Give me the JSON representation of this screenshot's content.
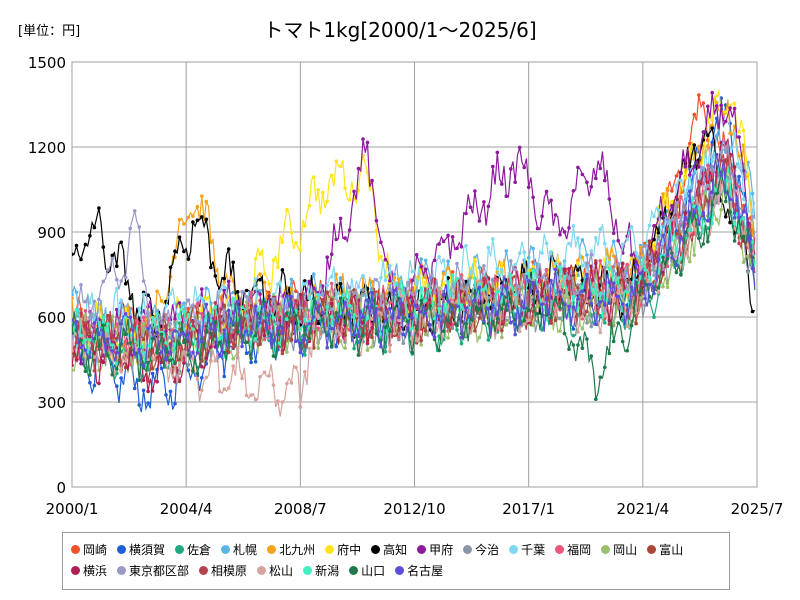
{
  "unit_label": "[単位：円]",
  "chart_data": {
    "type": "line",
    "title": "トマト1kg[2000/1～2025/6]",
    "xlabel": "",
    "ylabel": "",
    "xlim": [
      "2000/1",
      "2025/7"
    ],
    "ylim": [
      0,
      1500
    ],
    "yticks": [
      0,
      300,
      600,
      900,
      1200,
      1500
    ],
    "xticks": [
      "2000/1",
      "2004/4",
      "2008/7",
      "2012/10",
      "2017/1",
      "2021/4",
      "2025/7"
    ],
    "grid": true,
    "legend_position": "bottom",
    "series": [
      {
        "name": "岡崎",
        "color": "#f0502a",
        "points": [
          [
            "2000/1",
            560
          ],
          [
            "2003/1",
            520
          ],
          [
            "2006/1",
            600
          ],
          [
            "2009/1",
            640
          ],
          [
            "2012/1",
            610
          ],
          [
            "2015/1",
            680
          ],
          [
            "2018/1",
            700
          ],
          [
            "2021/1",
            700
          ],
          [
            "2023/7",
            1340
          ],
          [
            "2025/6",
            830
          ]
        ]
      },
      {
        "name": "横須賀",
        "color": "#1c5fd6",
        "points": [
          [
            "2000/1",
            480
          ],
          [
            "2003/1",
            330
          ],
          [
            "2006/1",
            520
          ],
          [
            "2009/1",
            560
          ],
          [
            "2012/1",
            600
          ],
          [
            "2015/1",
            640
          ],
          [
            "2018/1",
            650
          ],
          [
            "2021/1",
            660
          ],
          [
            "2024/6",
            1310
          ],
          [
            "2025/6",
            760
          ]
        ]
      },
      {
        "name": "佐倉",
        "color": "#1ea882",
        "points": [
          [
            "2000/1",
            500
          ],
          [
            "2003/1",
            470
          ],
          [
            "2006/1",
            540
          ],
          [
            "2009/1",
            580
          ],
          [
            "2012/1",
            570
          ],
          [
            "2015/1",
            600
          ],
          [
            "2018/1",
            630
          ],
          [
            "2021/1",
            620
          ],
          [
            "2024/6",
            1080
          ],
          [
            "2025/6",
            720
          ]
        ]
      },
      {
        "name": "札幌",
        "color": "#5ab4e6",
        "points": [
          [
            "2000/1",
            600
          ],
          [
            "2003/1",
            560
          ],
          [
            "2006/1",
            620
          ],
          [
            "2009/1",
            650
          ],
          [
            "2012/1",
            690
          ],
          [
            "2015/1",
            720
          ],
          [
            "2018/1",
            760
          ],
          [
            "2021/1",
            780
          ],
          [
            "2024/6",
            1200
          ],
          [
            "2025/6",
            1010
          ]
        ]
      },
      {
        "name": "北九州",
        "color": "#f5a31a",
        "points": [
          [
            "2000/1",
            570
          ],
          [
            "2003/1",
            560
          ],
          [
            "2004/7",
            1050
          ],
          [
            "2006/1",
            630
          ],
          [
            "2009/1",
            660
          ],
          [
            "2012/1",
            680
          ],
          [
            "2015/1",
            700
          ],
          [
            "2018/1",
            740
          ],
          [
            "2021/1",
            760
          ],
          [
            "2024/6",
            1380
          ],
          [
            "2025/6",
            900
          ]
        ]
      },
      {
        "name": "府中",
        "color": "#ffe51a",
        "points": [
          [
            "2000/1",
            560
          ],
          [
            "2003/1",
            540
          ],
          [
            "2006/1",
            610
          ],
          [
            "2009/7",
            1070
          ],
          [
            "2011/1",
            1100
          ],
          [
            "2012/1",
            650
          ],
          [
            "2015/1",
            700
          ],
          [
            "2018/1",
            730
          ],
          [
            "2021/1",
            760
          ],
          [
            "2024/7",
            1400
          ],
          [
            "2025/6",
            980
          ]
        ]
      },
      {
        "name": "高知",
        "color": "#000000",
        "points": [
          [
            "2000/1",
            820
          ],
          [
            "2001/1",
            900
          ],
          [
            "2003/1",
            560
          ],
          [
            "2004/7",
            950
          ],
          [
            "2006/1",
            700
          ],
          [
            "2009/1",
            650
          ],
          [
            "2012/1",
            600
          ],
          [
            "2015/1",
            680
          ],
          [
            "2018/1",
            720
          ],
          [
            "2021/1",
            700
          ],
          [
            "2023/7",
            1250
          ],
          [
            "2025/6",
            700
          ]
        ]
      },
      {
        "name": "甲府",
        "color": "#8e1a9c",
        "points": [
          [
            "2000/1",
            540
          ],
          [
            "2003/1",
            560
          ],
          [
            "2006/1",
            620
          ],
          [
            "2009/1",
            650
          ],
          [
            "2011/1",
            1160
          ],
          [
            "2012/1",
            620
          ],
          [
            "2016/7",
            1150
          ],
          [
            "2018/1",
            900
          ],
          [
            "2019/7",
            1140
          ],
          [
            "2021/1",
            760
          ],
          [
            "2024/6",
            1390
          ],
          [
            "2025/6",
            800
          ]
        ]
      },
      {
        "name": "今治",
        "color": "#8796a8",
        "points": [
          [
            "2000/1",
            520
          ],
          [
            "2003/1",
            500
          ],
          [
            "2006/1",
            560
          ],
          [
            "2009/1",
            590
          ],
          [
            "2012/1",
            600
          ],
          [
            "2015/1",
            640
          ],
          [
            "2018/1",
            660
          ],
          [
            "2021/1",
            680
          ],
          [
            "2024/6",
            1100
          ],
          [
            "2025/6",
            760
          ]
        ]
      },
      {
        "name": "千葉",
        "color": "#7fd8f0",
        "points": [
          [
            "2000/1",
            580
          ],
          [
            "2003/1",
            590
          ],
          [
            "2006/1",
            640
          ],
          [
            "2009/1",
            680
          ],
          [
            "2012/1",
            700
          ],
          [
            "2015/1",
            760
          ],
          [
            "2018/1",
            800
          ],
          [
            "2021/1",
            840
          ],
          [
            "2024/6",
            1180
          ],
          [
            "2025/6",
            1030
          ]
        ]
      },
      {
        "name": "福岡",
        "color": "#e8577a",
        "points": [
          [
            "2000/1",
            540
          ],
          [
            "2003/1",
            520
          ],
          [
            "2006/1",
            580
          ],
          [
            "2009/1",
            610
          ],
          [
            "2012/1",
            620
          ],
          [
            "2015/1",
            660
          ],
          [
            "2018/1",
            680
          ],
          [
            "2021/1",
            700
          ],
          [
            "2024/6",
            1150
          ],
          [
            "2025/6",
            800
          ]
        ]
      },
      {
        "name": "岡山",
        "color": "#9bbf6a",
        "points": [
          [
            "2000/1",
            510
          ],
          [
            "2003/1",
            480
          ],
          [
            "2006/1",
            550
          ],
          [
            "2009/1",
            580
          ],
          [
            "2012/1",
            590
          ],
          [
            "2015/1",
            620
          ],
          [
            "2018/1",
            640
          ],
          [
            "2021/1",
            650
          ],
          [
            "2024/6",
            1050
          ],
          [
            "2025/6",
            760
          ]
        ]
      },
      {
        "name": "富山",
        "color": "#a8483a",
        "points": [
          [
            "2000/1",
            530
          ],
          [
            "2003/1",
            510
          ],
          [
            "2006/1",
            570
          ],
          [
            "2009/1",
            600
          ],
          [
            "2012/1",
            610
          ],
          [
            "2015/1",
            650
          ],
          [
            "2018/1",
            680
          ],
          [
            "2021/1",
            690
          ],
          [
            "2024/6",
            1120
          ],
          [
            "2025/6",
            770
          ]
        ]
      },
      {
        "name": "横浜",
        "color": "#b01e56",
        "points": [
          [
            "2000/1",
            500
          ],
          [
            "2003/1",
            420
          ],
          [
            "2006/1",
            560
          ],
          [
            "2009/1",
            600
          ],
          [
            "2012/1",
            610
          ],
          [
            "2015/1",
            650
          ],
          [
            "2018/1",
            680
          ],
          [
            "2021/1",
            700
          ],
          [
            "2024/6",
            1200
          ],
          [
            "2025/6",
            780
          ]
        ]
      },
      {
        "name": "東京都区部",
        "color": "#9a9ac8",
        "points": [
          [
            "2000/1",
            560
          ],
          [
            "2002/7",
            900
          ],
          [
            "2003/1",
            560
          ],
          [
            "2006/1",
            600
          ],
          [
            "2009/1",
            630
          ],
          [
            "2012/1",
            650
          ],
          [
            "2015/1",
            690
          ],
          [
            "2018/1",
            710
          ],
          [
            "2021/1",
            730
          ],
          [
            "2024/6",
            1150
          ],
          [
            "2025/6",
            820
          ]
        ]
      },
      {
        "name": "相模原",
        "color": "#b5434e",
        "points": [
          [
            "2000/1",
            520
          ],
          [
            "2003/1",
            480
          ],
          [
            "2006/1",
            560
          ],
          [
            "2009/1",
            590
          ],
          [
            "2012/1",
            600
          ],
          [
            "2015/1",
            640
          ],
          [
            "2018/1",
            660
          ],
          [
            "2021/1",
            680
          ],
          [
            "2024/6",
            1100
          ],
          [
            "2025/6",
            780
          ]
        ]
      },
      {
        "name": "松山",
        "color": "#d8a39c",
        "points": [
          [
            "2000/1",
            500
          ],
          [
            "2003/1",
            460
          ],
          [
            "2007/1",
            360
          ],
          [
            "2008/7",
            340
          ],
          [
            "2009/1",
            560
          ],
          [
            "2012/1",
            580
          ],
          [
            "2015/1",
            620
          ],
          [
            "2018/1",
            640
          ],
          [
            "2021/1",
            660
          ],
          [
            "2024/6",
            1050
          ],
          [
            "2025/6",
            740
          ]
        ]
      },
      {
        "name": "新潟",
        "color": "#3ff0c0",
        "points": [
          [
            "2000/1",
            540
          ],
          [
            "2003/1",
            520
          ],
          [
            "2006/1",
            580
          ],
          [
            "2009/1",
            610
          ],
          [
            "2012/1",
            620
          ],
          [
            "2015/1",
            660
          ],
          [
            "2018/1",
            680
          ],
          [
            "2021/1",
            700
          ],
          [
            "2024/6",
            1080
          ],
          [
            "2025/6",
            790
          ]
        ]
      },
      {
        "name": "山口",
        "color": "#1e7a4c",
        "points": [
          [
            "2000/1",
            510
          ],
          [
            "2003/1",
            470
          ],
          [
            "2006/1",
            540
          ],
          [
            "2009/1",
            570
          ],
          [
            "2012/1",
            580
          ],
          [
            "2015/1",
            600
          ],
          [
            "2018/1",
            620
          ],
          [
            "2019/7",
            380
          ],
          [
            "2021/1",
            640
          ],
          [
            "2024/6",
            1040
          ],
          [
            "2025/6",
            730
          ]
        ]
      },
      {
        "name": "名古屋",
        "color": "#5b4fd8",
        "points": [
          [
            "2000/1",
            520
          ],
          [
            "2003/1",
            500
          ],
          [
            "2006/1",
            560
          ],
          [
            "2009/1",
            590
          ],
          [
            "2012/1",
            600
          ],
          [
            "2015/1",
            640
          ],
          [
            "2018/1",
            660
          ],
          [
            "2021/1",
            680
          ],
          [
            "2024/6",
            1120
          ],
          [
            "2025/6",
            780
          ]
        ]
      }
    ]
  }
}
